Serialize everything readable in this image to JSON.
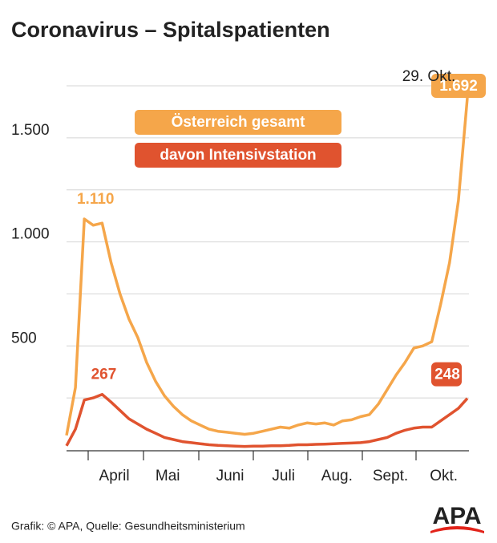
{
  "chart_data": {
    "type": "line",
    "title": "Coronavirus – Spitalspatienten",
    "source": "Grafik: © APA, Quelle: Gesundheitsministerium",
    "logo": "APA",
    "annotation": "29. Okt.",
    "categories": [
      null,
      null,
      null,
      null,
      null,
      "April",
      null,
      null,
      null,
      null,
      null,
      "Mai",
      null,
      null,
      null,
      null,
      null,
      null,
      "Juni",
      null,
      null,
      null,
      null,
      null,
      "Juli",
      null,
      null,
      null,
      null,
      null,
      "Aug.",
      null,
      null,
      null,
      null,
      null,
      "Sept.",
      null,
      null,
      null,
      null,
      null,
      "Okt.",
      null,
      null,
      null
    ],
    "series": [
      {
        "name": "Österreich gesamt",
        "color": "#f5a64a",
        "values": [
          70,
          300,
          1110,
          1080,
          1090,
          900,
          750,
          630,
          540,
          420,
          330,
          260,
          210,
          170,
          140,
          120,
          100,
          90,
          85,
          80,
          75,
          80,
          90,
          100,
          110,
          105,
          120,
          130,
          125,
          130,
          120,
          140,
          145,
          160,
          170,
          220,
          290,
          360,
          420,
          490,
          500,
          520,
          700,
          900,
          1200,
          1692
        ],
        "value_labels": [
          null,
          null,
          "1.110",
          null,
          null,
          null,
          null,
          null,
          null,
          null,
          null,
          null,
          null,
          null,
          null,
          null,
          null,
          null,
          null,
          null,
          null,
          null,
          null,
          null,
          null,
          null,
          null,
          null,
          null,
          null,
          null,
          null,
          null,
          null,
          null,
          null,
          null,
          null,
          null,
          null,
          null,
          null,
          null,
          null,
          null,
          "1.692"
        ]
      },
      {
        "name": "davon Intensivstation",
        "color": "#e0532f",
        "values": [
          20,
          100,
          240,
          250,
          267,
          230,
          190,
          150,
          125,
          100,
          80,
          60,
          50,
          40,
          35,
          30,
          25,
          22,
          20,
          18,
          17,
          18,
          18,
          20,
          20,
          22,
          25,
          25,
          27,
          28,
          30,
          32,
          33,
          35,
          40,
          50,
          60,
          80,
          95,
          105,
          110,
          110,
          140,
          170,
          200,
          248
        ],
        "value_labels": [
          null,
          null,
          null,
          null,
          "267",
          null,
          null,
          null,
          null,
          null,
          null,
          null,
          null,
          null,
          null,
          null,
          null,
          null,
          null,
          null,
          null,
          null,
          null,
          null,
          null,
          null,
          null,
          null,
          null,
          null,
          null,
          null,
          null,
          null,
          null,
          null,
          null,
          null,
          null,
          null,
          null,
          null,
          null,
          null,
          null,
          "248"
        ]
      }
    ],
    "ylim": [
      0,
      1750
    ],
    "yticks": [
      500,
      {
        "value": 1000,
        "label": "1.000"
      },
      {
        "value": 1500,
        "label": "1.500"
      }
    ],
    "ygrid": [
      250,
      500,
      750,
      1000,
      1250,
      1500,
      1750
    ],
    "grid": true
  }
}
